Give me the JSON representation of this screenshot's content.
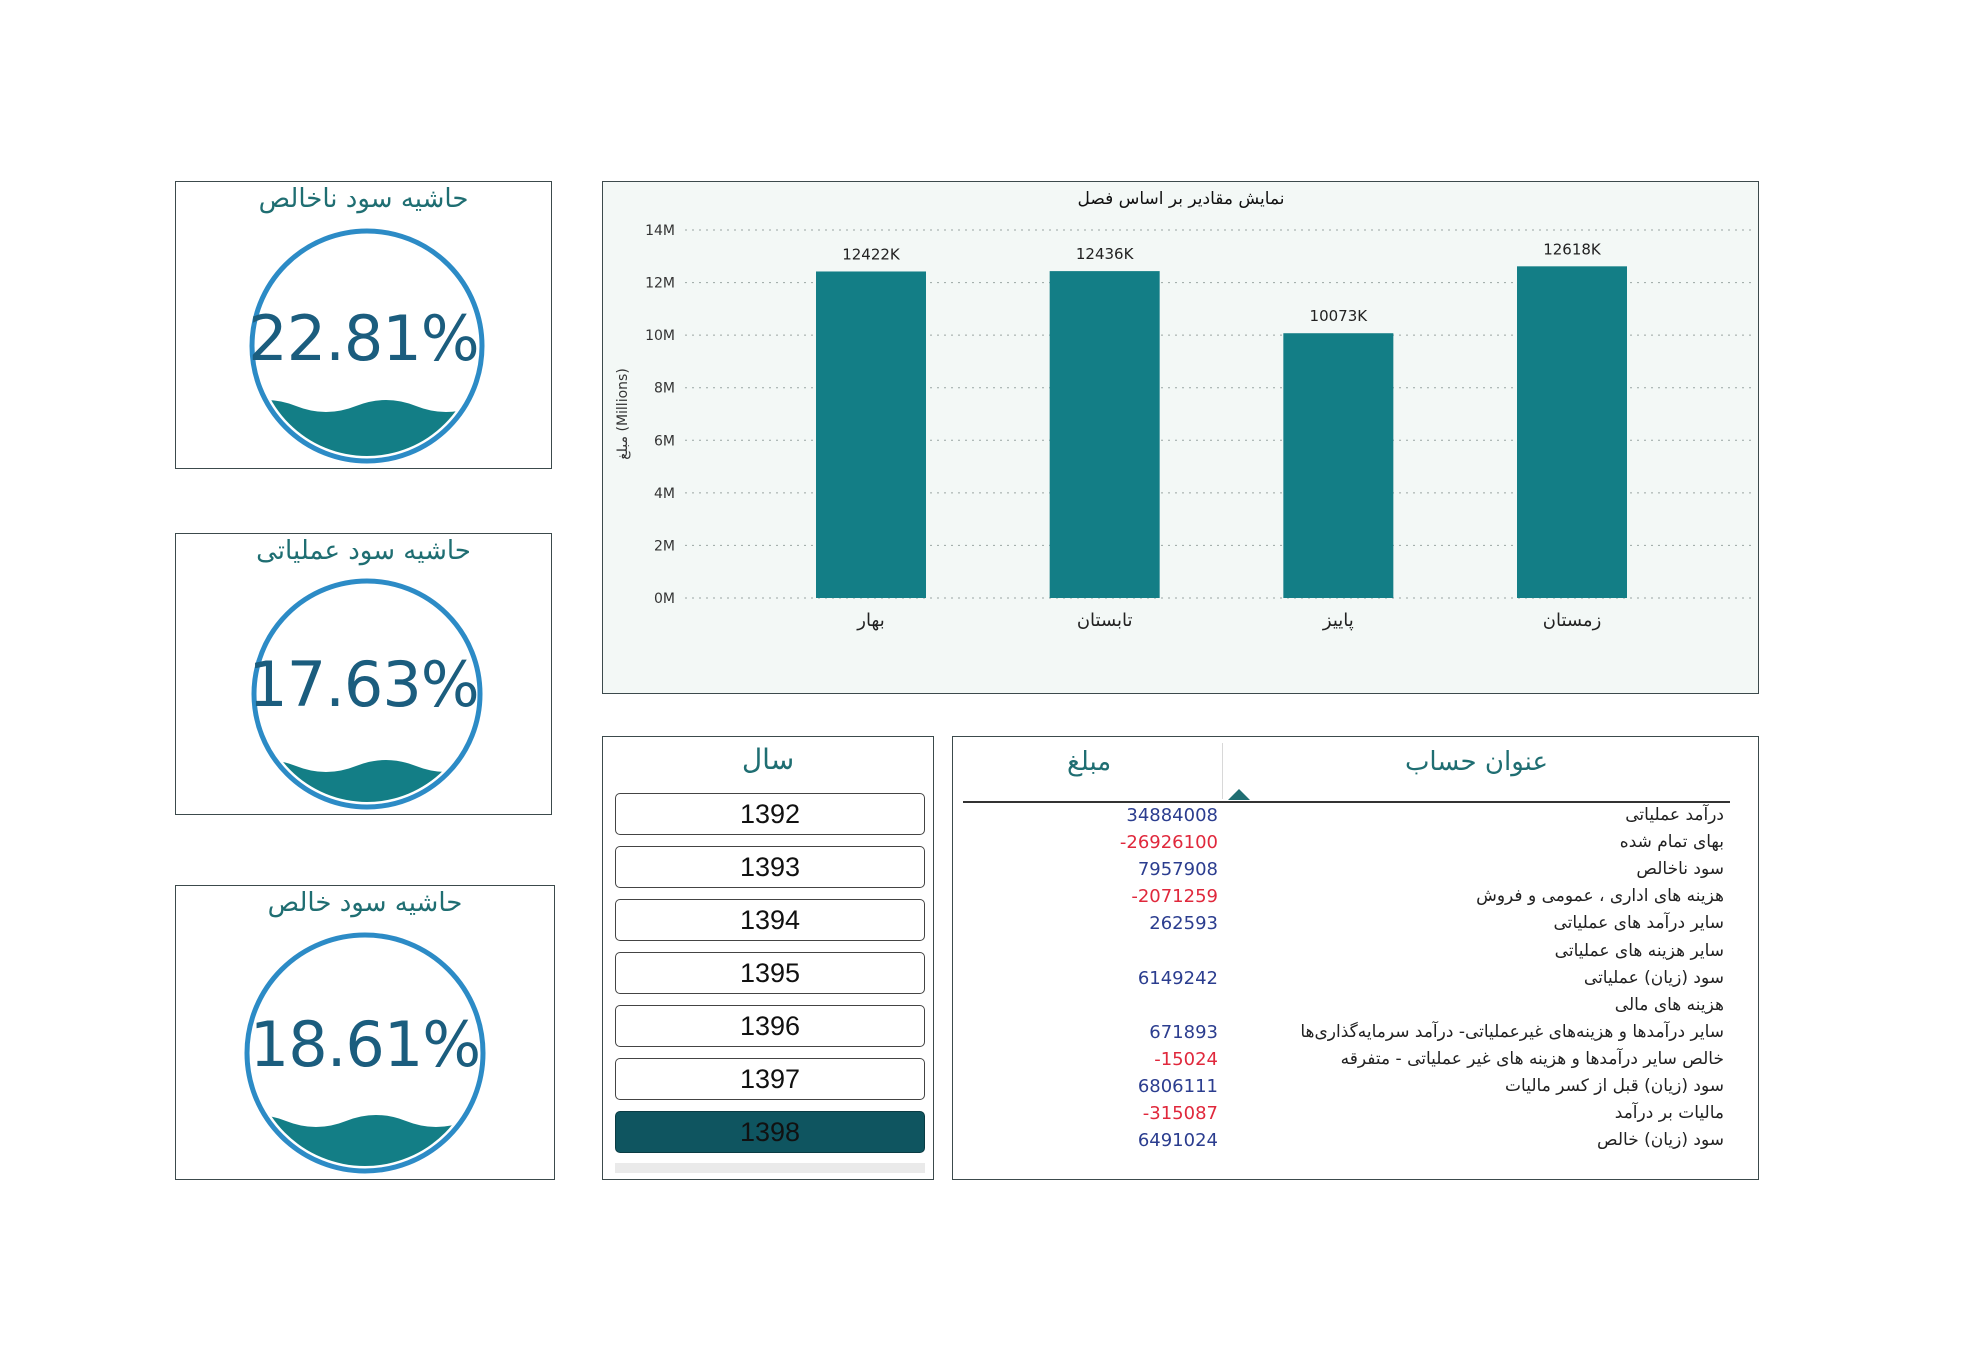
{
  "kpis": [
    {
      "title": "حاشیه سود ناخالص",
      "value": "22.81%"
    },
    {
      "title": "حاشیه سود عملیاتی",
      "value": "17.63%"
    },
    {
      "title": "حاشیه سود خالص",
      "value": "18.61%"
    }
  ],
  "colors": {
    "bar": "#137e86",
    "gauge_ring": "#2c8bc6",
    "gauge_fill": "#137e86",
    "positive": "#2b3d8f",
    "negative": "#e0283c",
    "selected_year": "#0f5560"
  },
  "chart_data": {
    "type": "bar",
    "title": "نمایش مقادیر بر اساس فصل",
    "ylabel": "مبلغ (Millions)",
    "xlabel": "",
    "categories": [
      "بهار",
      "تابستان",
      "پاییز",
      "زمستان"
    ],
    "values": [
      12422000,
      12436000,
      10073000,
      12618000
    ],
    "data_labels": [
      "12422K",
      "12436K",
      "10073K",
      "12618K"
    ],
    "y_ticks": [
      "0M",
      "2M",
      "4M",
      "6M",
      "8M",
      "10M",
      "12M",
      "14M"
    ],
    "ylim": [
      0,
      14000000
    ],
    "grid": true
  },
  "year_slicer": {
    "title": "سال",
    "years": [
      "1392",
      "1393",
      "1394",
      "1395",
      "1396",
      "1397",
      "1398"
    ],
    "selected": "1398"
  },
  "table": {
    "col_title": "عنوان حساب",
    "col_amount": "مبلغ",
    "rows": [
      {
        "title": "درآمد عملیاتی",
        "value": "34884008",
        "neg": false
      },
      {
        "title": "بهای تمام شده",
        "value": "-26926100",
        "neg": true
      },
      {
        "title": "سود ناخالص",
        "value": "7957908",
        "neg": false
      },
      {
        "title": "هزینه های اداری ، عمومی و فروش",
        "value": "-2071259",
        "neg": true
      },
      {
        "title": "سایر درآمد های عملیاتی",
        "value": "262593",
        "neg": false
      },
      {
        "title": "سایر هزینه های عملیاتی",
        "value": "",
        "neg": false
      },
      {
        "title": "سود (زیان) عملیاتی",
        "value": "6149242",
        "neg": false
      },
      {
        "title": "هزینه های مالی",
        "value": "",
        "neg": false
      },
      {
        "title": "سایر درآمدها و هزینه‌های غیرعملیاتی- درآمد سرمایه‌گذاری‌ها",
        "value": "671893",
        "neg": false
      },
      {
        "title": "خالص سایر درآمدها و هزینه های غیر عملیاتی - متفرقه",
        "value": "-15024",
        "neg": true
      },
      {
        "title": "سود (زیان) قبل از کسر مالیات",
        "value": "6806111",
        "neg": false
      },
      {
        "title": "مالیات بر درآمد",
        "value": "-315087",
        "neg": true
      },
      {
        "title": "سود (زیان) خالص",
        "value": "6491024",
        "neg": false
      }
    ]
  }
}
